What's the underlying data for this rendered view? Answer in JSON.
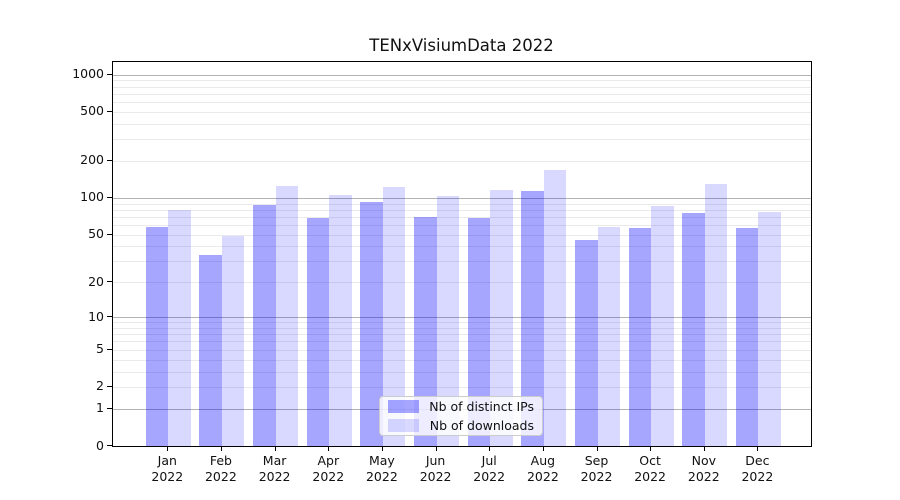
{
  "figure": {
    "title": "TENxVisiumData 2022"
  },
  "chart_data": {
    "type": "bar",
    "title": "TENxVisiumData 2022",
    "categories": [
      "Jan",
      "Feb",
      "Mar",
      "Apr",
      "May",
      "Jun",
      "Jul",
      "Aug",
      "Sep",
      "Oct",
      "Nov",
      "Dec"
    ],
    "category_year": "2022",
    "series": [
      {
        "name": "Nb of distinct IPs",
        "color": "rgba(0,0,255,0.35)",
        "values": [
          58,
          34,
          87,
          68,
          92,
          70,
          68,
          115,
          45,
          57,
          75,
          57
        ]
      },
      {
        "name": "Nb of downloads",
        "color": "rgba(0,0,255,0.15)",
        "values": [
          80,
          49,
          126,
          105,
          122,
          104,
          117,
          168,
          58,
          86,
          131,
          77
        ]
      }
    ],
    "yscale": "log1p",
    "ylim": [
      0,
      1265
    ],
    "y_tick_values": [
      0,
      1,
      2,
      5,
      10,
      20,
      50,
      100,
      200,
      500,
      1000
    ],
    "y_tick_labels": [
      "0",
      "1",
      "2",
      "5",
      "10",
      "20",
      "50",
      "100",
      "200",
      "500",
      "1000"
    ],
    "y_major_gridline_values": [
      1,
      10,
      100,
      1000
    ],
    "grid": "both",
    "legend_position": "lower center"
  },
  "colors": {
    "major_grid": "#b3b3b3",
    "minor_grid": "#eaeaea",
    "axis": "#000000",
    "text": "#111111",
    "legend_border": "#cccccc",
    "legend_bg": "rgba(255,255,255,0.8)"
  }
}
